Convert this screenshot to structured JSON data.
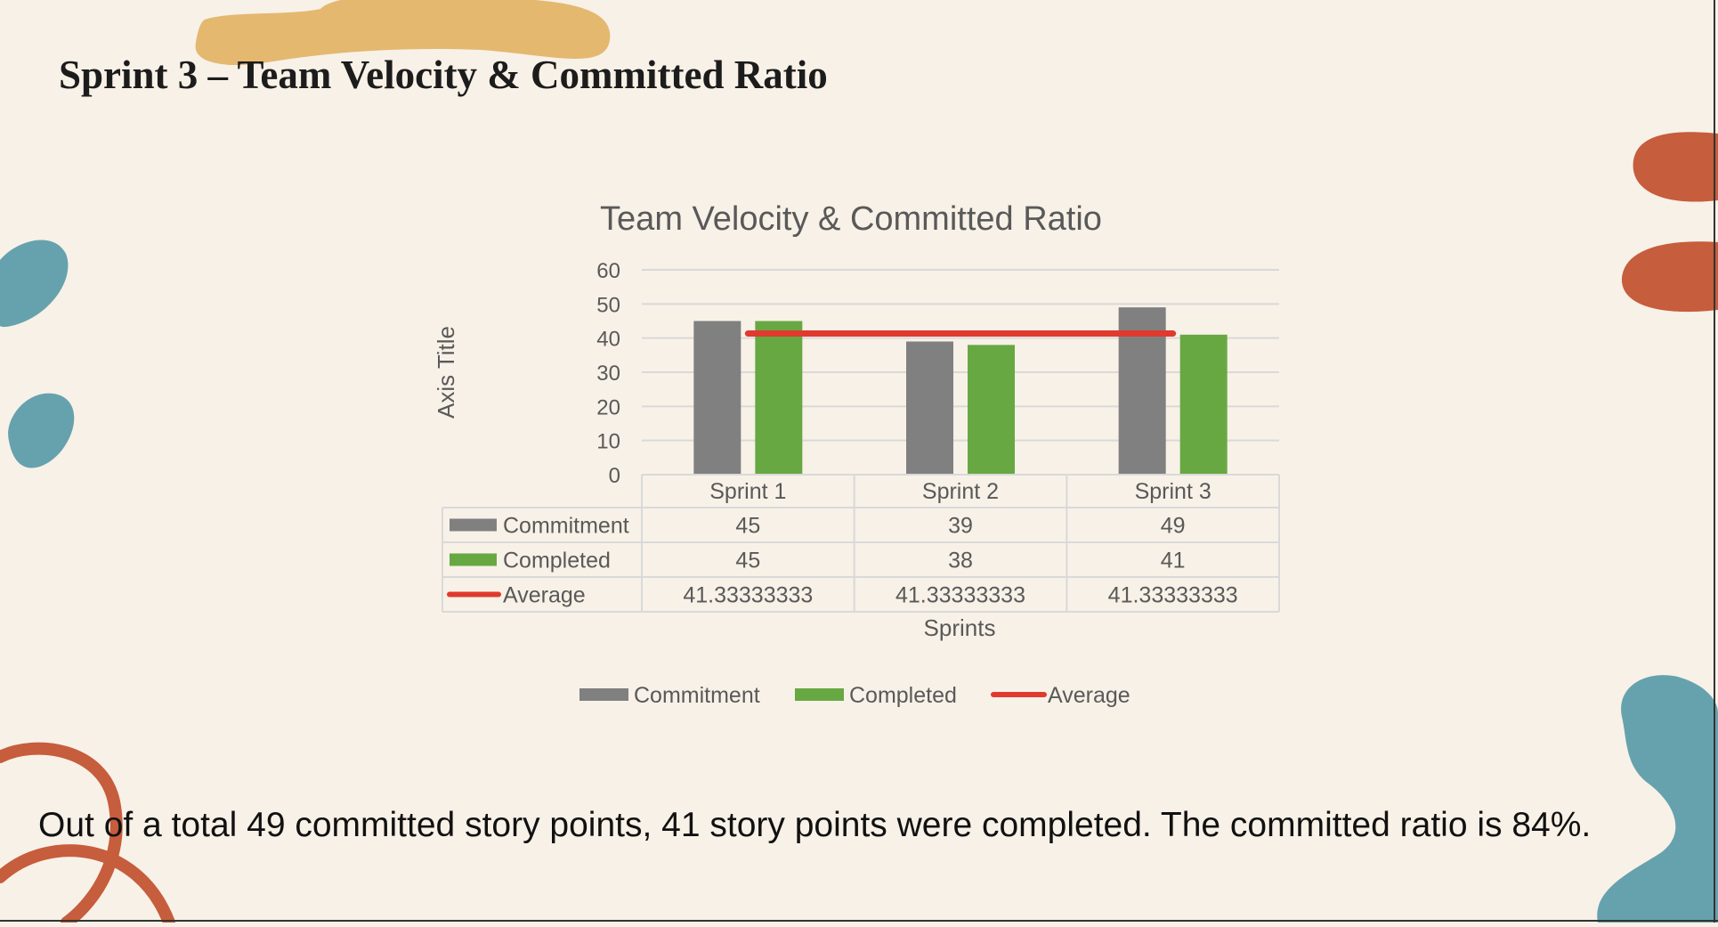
{
  "slide": {
    "title": "Sprint 3 – Team Velocity & Committed Ratio",
    "summary": "Out of a total 49 committed story points, 41 story points were completed. The committed ratio is 84%."
  },
  "colors": {
    "background": "#f8f1e7",
    "commitment": "#808080",
    "completed": "#67a843",
    "average": "#e03a2f",
    "blob_yellow": "#e4b86f",
    "blob_teal": "#66a2ae",
    "blob_orange": "#c65d3c"
  },
  "chart_data": {
    "type": "bar",
    "title": "Team Velocity & Committed Ratio",
    "xlabel": "Sprints",
    "ylabel": "Axis Title",
    "ylim": [
      0,
      60
    ],
    "yticks": [
      0,
      10,
      20,
      30,
      40,
      50,
      60
    ],
    "grid": true,
    "legend": "bottom",
    "data_table": true,
    "categories": [
      "Sprint 1",
      "Sprint 2",
      "Sprint 3"
    ],
    "series": [
      {
        "name": "Commitment",
        "kind": "bar",
        "color": "#808080",
        "values": [
          45,
          39,
          49
        ],
        "labels": [
          "45",
          "39",
          "49"
        ]
      },
      {
        "name": "Completed",
        "kind": "bar",
        "color": "#67a843",
        "values": [
          45,
          38,
          41
        ],
        "labels": [
          "45",
          "38",
          "41"
        ]
      },
      {
        "name": "Average",
        "kind": "line",
        "color": "#e03a2f",
        "values": [
          41.33333333,
          41.33333333,
          41.33333333
        ],
        "labels": [
          "41.33333333",
          "41.33333333",
          "41.33333333"
        ]
      }
    ]
  }
}
